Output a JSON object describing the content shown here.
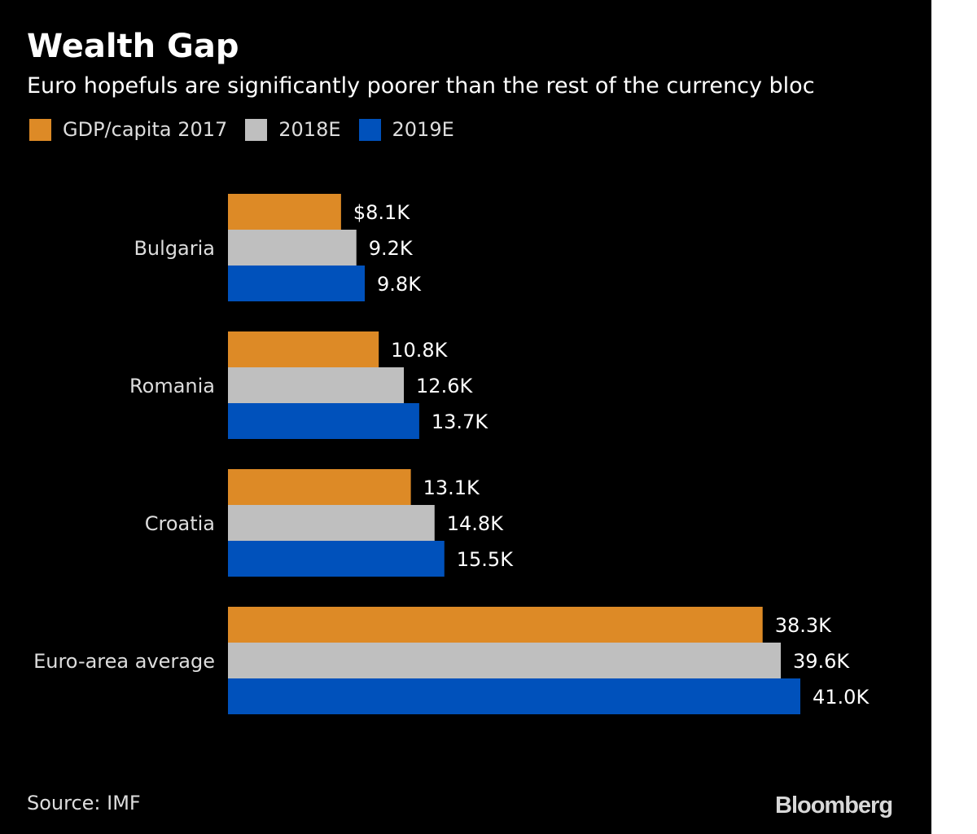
{
  "chart_data": {
    "type": "bar",
    "orientation": "horizontal",
    "title": "Wealth Gap",
    "subtitle": "Euro hopefuls are significantly poorer than the rest of the currency bloc",
    "categories": [
      "Bulgaria",
      "Romania",
      "Croatia",
      "Euro-area average"
    ],
    "series": [
      {
        "name": "GDP/capita 2017",
        "color": "#dd8a26",
        "values": [
          8.1,
          10.8,
          13.1,
          38.3
        ],
        "labels": [
          "$8.1K",
          "10.8K",
          "13.1K",
          "38.3K"
        ]
      },
      {
        "name": "2018E",
        "color": "#bfbfbf",
        "values": [
          9.2,
          12.6,
          14.8,
          39.6
        ],
        "labels": [
          "9.2K",
          "12.6K",
          "14.8K",
          "39.6K"
        ]
      },
      {
        "name": "2019E",
        "color": "#0051bb",
        "values": [
          9.8,
          13.7,
          15.5,
          41.0
        ],
        "labels": [
          "9.8K",
          "13.7K",
          "15.5K",
          "41.0K"
        ]
      }
    ],
    "units": "thousand US dollars",
    "xlim": [
      0,
      41.0
    ],
    "grid": false,
    "legend": "top-left"
  },
  "source": "Source: IMF",
  "logo": "Bloomberg"
}
